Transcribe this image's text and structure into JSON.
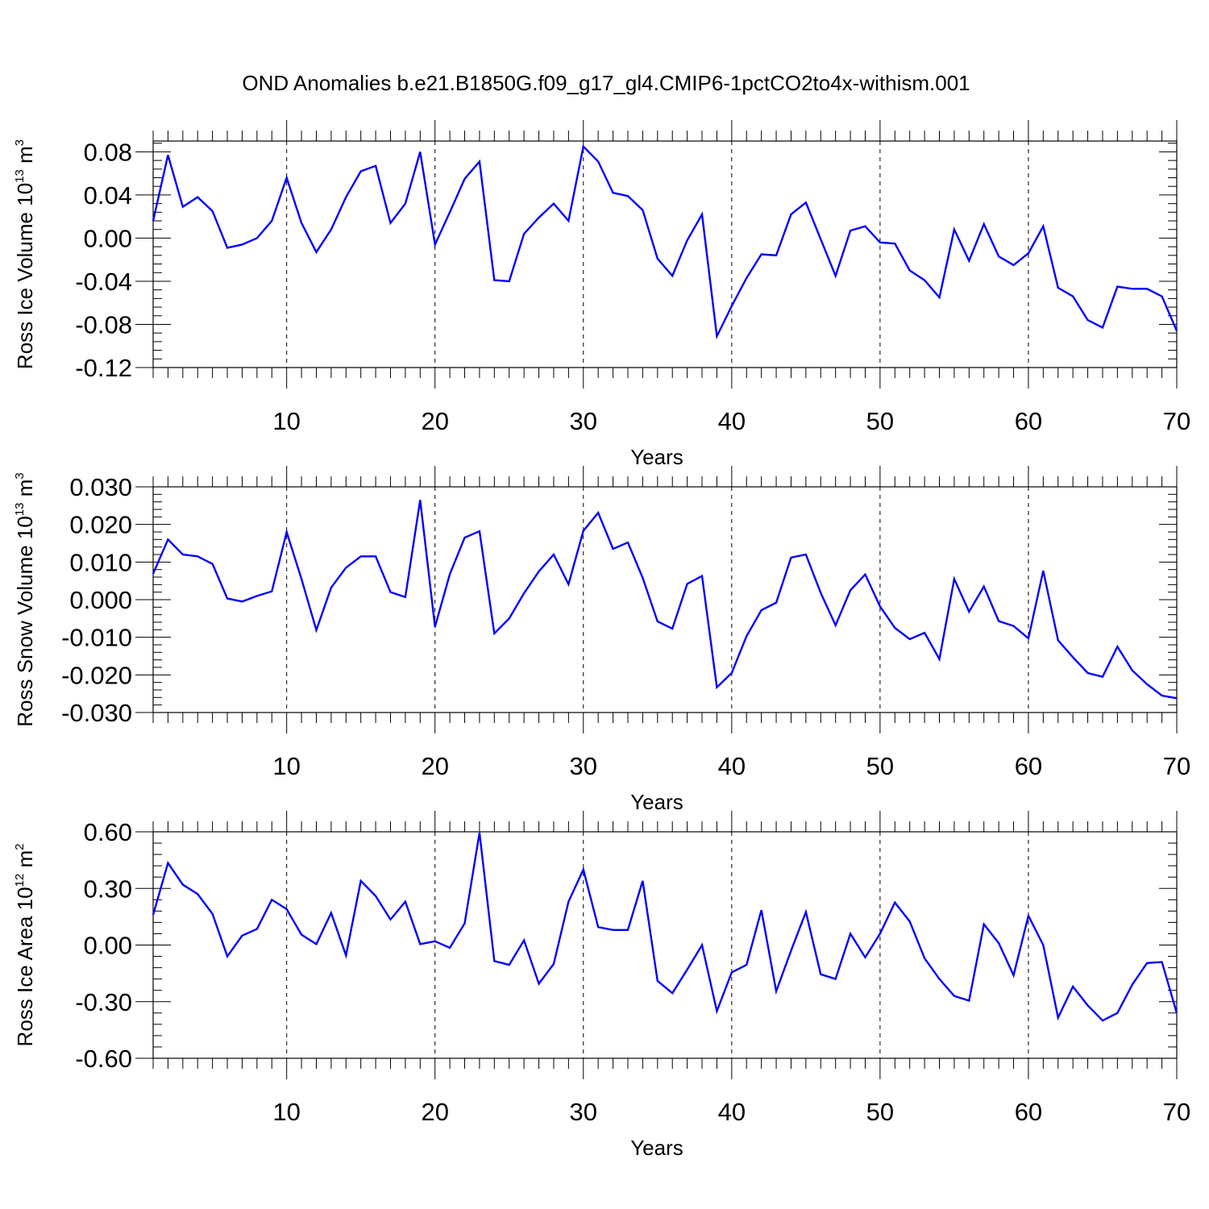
{
  "title": "OND Anomalies b.e21.B1850G.f09_g17_gl4.CMIP6-1pctCO2to4x-withism.001",
  "colors": {
    "line": "#0000ff",
    "axis": "#000000",
    "grid": "#000000"
  },
  "chart_data": [
    {
      "type": "line",
      "id": "ice-volume",
      "ylabel": {
        "main": "Ross Ice Volume 10",
        "exp": "13",
        "unit": " m",
        "unit_exp": "3"
      },
      "xlabel": "Years",
      "xlim": [
        1,
        70
      ],
      "ylim": [
        -0.12,
        0.09
      ],
      "xticks": [
        10,
        20,
        30,
        40,
        50,
        60,
        70
      ],
      "xtick_labels": [
        "10",
        "20",
        "30",
        "40",
        "50",
        "60",
        "70"
      ],
      "yticks": [
        -0.12,
        -0.08,
        -0.04,
        0.0,
        0.04,
        0.08
      ],
      "ytick_labels": [
        "-0.12",
        "-0.08",
        "-0.04",
        "0.00",
        "0.04",
        "0.08"
      ],
      "yminor_step": 0.008,
      "grid_x": true,
      "x": [
        1,
        2,
        3,
        4,
        5,
        6,
        7,
        8,
        9,
        10,
        11,
        12,
        13,
        14,
        15,
        16,
        17,
        18,
        19,
        20,
        21,
        22,
        23,
        24,
        25,
        26,
        27,
        28,
        29,
        30,
        31,
        32,
        33,
        34,
        35,
        36,
        37,
        38,
        39,
        40,
        41,
        42,
        43,
        44,
        45,
        46,
        47,
        48,
        49,
        50,
        51,
        52,
        53,
        54,
        55,
        56,
        57,
        58,
        59,
        60,
        61,
        62,
        63,
        64,
        65,
        66,
        67,
        68,
        69,
        70
      ],
      "values": [
        0.016,
        0.077,
        0.029,
        0.038,
        0.025,
        -0.009,
        -0.006,
        0.0,
        0.016,
        0.056,
        0.014,
        -0.013,
        0.008,
        0.038,
        0.062,
        0.067,
        0.014,
        0.032,
        0.08,
        -0.006,
        0.024,
        0.055,
        0.071,
        -0.039,
        -0.04,
        0.004,
        0.019,
        0.032,
        0.016,
        0.085,
        0.071,
        0.042,
        0.039,
        0.026,
        -0.019,
        -0.035,
        -0.002,
        0.022,
        -0.091,
        -0.063,
        -0.037,
        -0.015,
        -0.016,
        0.022,
        0.033,
        -0.001,
        -0.035,
        0.007,
        0.011,
        -0.004,
        -0.005,
        -0.03,
        -0.039,
        -0.055,
        0.008,
        -0.021,
        0.013,
        -0.017,
        -0.025,
        -0.014,
        0.011,
        -0.046,
        -0.054,
        -0.076,
        -0.083,
        -0.045,
        -0.047,
        -0.047,
        -0.054,
        -0.086
      ]
    },
    {
      "type": "line",
      "id": "snow-volume",
      "ylabel": {
        "main": "Ross Snow Volume 10",
        "exp": "13",
        "unit": " m",
        "unit_exp": "3"
      },
      "xlabel": "Years",
      "xlim": [
        1,
        70
      ],
      "ylim": [
        -0.03,
        0.03
      ],
      "xticks": [
        10,
        20,
        30,
        40,
        50,
        60,
        70
      ],
      "xtick_labels": [
        "10",
        "20",
        "30",
        "40",
        "50",
        "60",
        "70"
      ],
      "yticks": [
        -0.03,
        -0.02,
        -0.01,
        0.0,
        0.01,
        0.02,
        0.03
      ],
      "ytick_labels": [
        "-0.030",
        "-0.020",
        "-0.010",
        "0.000",
        "0.010",
        "0.020",
        "0.030"
      ],
      "yminor_step": 0.002,
      "grid_x": true,
      "x": [
        1,
        2,
        3,
        4,
        5,
        6,
        7,
        8,
        9,
        10,
        11,
        12,
        13,
        14,
        15,
        16,
        17,
        18,
        19,
        20,
        21,
        22,
        23,
        24,
        25,
        26,
        27,
        28,
        29,
        30,
        31,
        32,
        33,
        34,
        35,
        36,
        37,
        38,
        39,
        40,
        41,
        42,
        43,
        44,
        45,
        46,
        47,
        48,
        49,
        50,
        51,
        52,
        53,
        54,
        55,
        56,
        57,
        58,
        59,
        60,
        61,
        62,
        63,
        64,
        65,
        66,
        67,
        68,
        69,
        70
      ],
      "values": [
        0.0069,
        0.016,
        0.012,
        0.0115,
        0.0095,
        0.0003,
        -0.0005,
        0.001,
        0.0022,
        0.018,
        0.0055,
        -0.0081,
        0.0032,
        0.0085,
        0.0115,
        0.0115,
        0.002,
        0.0007,
        0.0265,
        -0.0072,
        0.0068,
        0.0165,
        0.0182,
        -0.009,
        -0.005,
        0.0017,
        0.0075,
        0.012,
        0.0041,
        0.0183,
        0.0231,
        0.0135,
        0.0152,
        0.0058,
        -0.0058,
        -0.0077,
        0.0042,
        0.0063,
        -0.0233,
        -0.0195,
        -0.0097,
        -0.0028,
        -0.0008,
        0.0112,
        0.012,
        0.0018,
        -0.0068,
        0.0025,
        0.0067,
        -0.0018,
        -0.0075,
        -0.0105,
        -0.0088,
        -0.0158,
        0.0055,
        -0.0032,
        0.0035,
        -0.0057,
        -0.007,
        -0.0103,
        0.0077,
        -0.0108,
        -0.0153,
        -0.0195,
        -0.0205,
        -0.0125,
        -0.0188,
        -0.0225,
        -0.0255,
        -0.0262
      ]
    },
    {
      "type": "line",
      "id": "ice-area",
      "ylabel": {
        "main": "Ross Ice Area 10",
        "exp": "12",
        "unit": " m",
        "unit_exp": "2"
      },
      "xlabel": "Years",
      "xlim": [
        1,
        70
      ],
      "ylim": [
        -0.6,
        0.6
      ],
      "xticks": [
        10,
        20,
        30,
        40,
        50,
        60,
        70
      ],
      "xtick_labels": [
        "10",
        "20",
        "30",
        "40",
        "50",
        "60",
        "70"
      ],
      "yticks": [
        -0.6,
        -0.3,
        0.0,
        0.3,
        0.6
      ],
      "ytick_labels": [
        "-0.60",
        "-0.30",
        "0.00",
        "0.30",
        "0.60"
      ],
      "yminor_step": 0.06,
      "grid_x": true,
      "x": [
        1,
        2,
        3,
        4,
        5,
        6,
        7,
        8,
        9,
        10,
        11,
        12,
        13,
        14,
        15,
        16,
        17,
        18,
        19,
        20,
        21,
        22,
        23,
        24,
        25,
        26,
        27,
        28,
        29,
        30,
        31,
        32,
        33,
        34,
        35,
        36,
        37,
        38,
        39,
        40,
        41,
        42,
        43,
        44,
        45,
        46,
        47,
        48,
        49,
        50,
        51,
        52,
        53,
        54,
        55,
        56,
        57,
        58,
        59,
        60,
        61,
        62,
        63,
        64,
        65,
        66,
        67,
        68,
        69,
        70
      ],
      "values": [
        0.16,
        0.435,
        0.32,
        0.27,
        0.165,
        -0.06,
        0.05,
        0.085,
        0.24,
        0.19,
        0.055,
        0.005,
        0.17,
        -0.055,
        0.34,
        0.26,
        0.135,
        0.23,
        0.005,
        0.02,
        -0.015,
        0.115,
        0.595,
        -0.085,
        -0.105,
        0.025,
        -0.205,
        -0.1,
        0.23,
        0.4,
        0.095,
        0.08,
        0.08,
        0.34,
        -0.19,
        -0.255,
        -0.13,
        0.0,
        -0.35,
        -0.145,
        -0.105,
        0.185,
        -0.245,
        -0.03,
        0.175,
        -0.155,
        -0.18,
        0.06,
        -0.065,
        0.06,
        0.225,
        0.125,
        -0.07,
        -0.18,
        -0.27,
        -0.295,
        0.11,
        0.01,
        -0.16,
        0.155,
        0.0,
        -0.385,
        -0.22,
        -0.32,
        -0.4,
        -0.36,
        -0.21,
        -0.095,
        -0.09,
        -0.36
      ]
    }
  ]
}
